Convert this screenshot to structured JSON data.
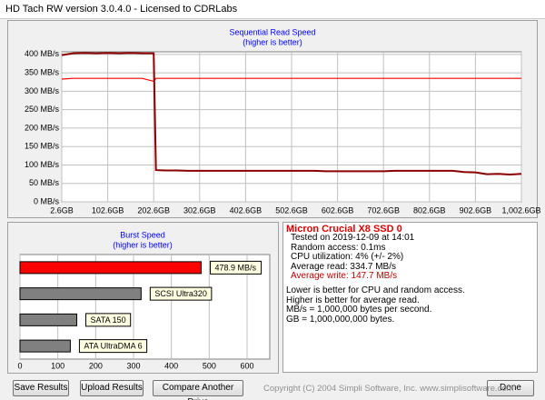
{
  "window": {
    "title": "HD Tach RW version 3.0.4.0 - Licensed to CDRLabs"
  },
  "read_chart": {
    "type": "line",
    "title": "Sequential Read Speed",
    "subtitle": "(higher is better)",
    "x": [
      2.6,
      27.6,
      52.6,
      77.6,
      102.6,
      127.6,
      152.6,
      177.6,
      202.6,
      207.6,
      227.6,
      252.6,
      277.6,
      302.6,
      327.6,
      352.6,
      377.6,
      402.6,
      427.6,
      452.6,
      477.6,
      502.6,
      527.6,
      552.6,
      577.6,
      602.6,
      627.6,
      652.6,
      677.6,
      702.6,
      727.6,
      752.6,
      777.6,
      802.6,
      827.6,
      852.6,
      877.6,
      902.6,
      927.6,
      952.6,
      977.6,
      1002.6
    ],
    "series": [
      {
        "color": "#ff0000",
        "values": [
          333,
          335,
          335,
          335,
          335,
          335,
          335,
          335,
          327,
          335,
          335,
          335,
          335,
          335,
          335,
          335,
          335,
          335,
          335,
          335,
          335,
          335,
          335,
          335,
          335,
          335,
          335,
          335,
          335,
          335,
          335,
          335,
          335,
          335,
          335,
          335,
          335,
          335,
          335,
          335,
          335,
          335
        ]
      },
      {
        "color": "#8b0000",
        "values": [
          398,
          403,
          404,
          403,
          404,
          403,
          404,
          403,
          403,
          86,
          85,
          85,
          84,
          84,
          84,
          84,
          84,
          84,
          84,
          84,
          84,
          84,
          84,
          84,
          83,
          83,
          83,
          83,
          83,
          83,
          84,
          84,
          84,
          84,
          84,
          84,
          81,
          80,
          75,
          76,
          74,
          76
        ]
      }
    ],
    "xlim": [
      2.6,
      1002.6
    ],
    "xticks": [
      {
        "value": 2.6,
        "label": "2.6GB"
      },
      {
        "value": 102.6,
        "label": "102.6GB"
      },
      {
        "value": 202.6,
        "label": "202.6GB"
      },
      {
        "value": 302.6,
        "label": "302.6GB"
      },
      {
        "value": 402.6,
        "label": "402.6GB"
      },
      {
        "value": 502.6,
        "label": "502.6GB"
      },
      {
        "value": 602.6,
        "label": "602.6GB"
      },
      {
        "value": 702.6,
        "label": "702.6GB"
      },
      {
        "value": 802.6,
        "label": "802.6GB"
      },
      {
        "value": 902.6,
        "label": "902.6GB"
      },
      {
        "value": 1002.6,
        "label": "1,002.6GB"
      }
    ],
    "ylim": [
      0,
      407
    ],
    "yticks": [
      {
        "value": 0,
        "label": "0 MB/s"
      },
      {
        "value": 50,
        "label": "50 MB/s"
      },
      {
        "value": 100,
        "label": "100 MB/s"
      },
      {
        "value": 150,
        "label": "150 MB/s"
      },
      {
        "value": 200,
        "label": "200 MB/s"
      },
      {
        "value": 250,
        "label": "250 MB/s"
      },
      {
        "value": 300,
        "label": "300 MB/s"
      },
      {
        "value": 350,
        "label": "350 MB/s"
      },
      {
        "value": 400,
        "label": "400 MB/s"
      }
    ],
    "grid": true
  },
  "burst_chart": {
    "type": "hbar",
    "title": "Burst Speed",
    "subtitle": "(higher is better)",
    "bars": [
      {
        "value": 478.9,
        "label": "478.9 MB/s",
        "color": "#ff0000"
      },
      {
        "value": 320,
        "label": "SCSI Ultra320",
        "color": "#808080"
      },
      {
        "value": 150,
        "label": "SATA 150",
        "color": "#808080"
      },
      {
        "value": 133,
        "label": "ATA UltraDMA 6",
        "color": "#808080"
      }
    ],
    "xlim": [
      0,
      660
    ],
    "xticks": [
      0,
      100,
      200,
      300,
      400,
      500,
      600
    ],
    "grid": true
  },
  "info": {
    "drive": "Micron Crucial X8 SSD 0",
    "lines": [
      "Tested on 2019-12-09 at 14:01",
      "Random access: 0.1ms",
      "CPU utilization: 4% (+/- 2%)",
      "Average read: 334.7 MB/s",
      "Average write: 147.7 MB/s"
    ],
    "notes": [
      "Lower is better for CPU and random access.",
      "Higher is better for average read.",
      "MB/s = 1,000,000 bytes per second.",
      "GB = 1,000,000,000 bytes."
    ]
  },
  "buttons": [
    "Save Results",
    "Upload Results",
    "Compare Another Drive",
    "Done"
  ],
  "copyright": "Copyright (C) 2004 Simpli Software, Inc. www.simplisoftware.com"
}
